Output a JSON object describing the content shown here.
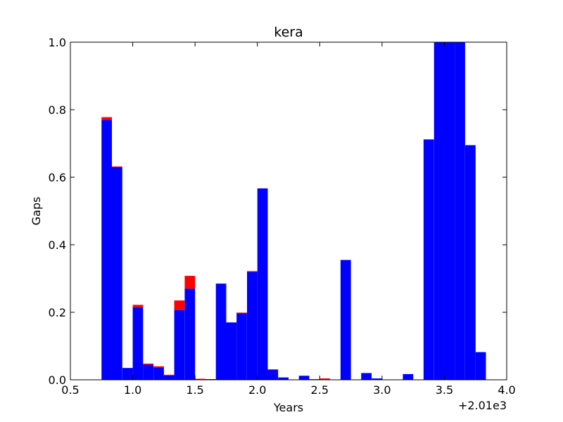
{
  "chart_data": {
    "type": "bar",
    "title": "kera",
    "xlabel": "Years",
    "ylabel": "Gaps",
    "offset_label": "+2.01e3",
    "xlim": [
      0.5,
      4.0
    ],
    "ylim": [
      0.0,
      1.0
    ],
    "xticks": [
      "0.5",
      "1.0",
      "1.5",
      "2.0",
      "2.5",
      "3.0",
      "3.5",
      "4.0"
    ],
    "yticks": [
      "0.0",
      "0.2",
      "0.4",
      "0.6",
      "0.8",
      "1.0"
    ],
    "bin_width": 0.0833,
    "grid": false,
    "colors": {
      "primary": "#0000ff",
      "secondary": "#ff0000"
    },
    "x": [
      0.75,
      0.833,
      0.917,
      1.0,
      1.083,
      1.167,
      1.25,
      1.333,
      1.417,
      1.5,
      1.583,
      1.667,
      1.75,
      1.833,
      1.917,
      2.0,
      2.083,
      2.167,
      2.25,
      2.333,
      2.417,
      2.5,
      2.583,
      2.667,
      2.75,
      2.833,
      2.917,
      3.0,
      3.083,
      3.167,
      3.25,
      3.333,
      3.417,
      3.5,
      3.583,
      3.667,
      3.75,
      3.833
    ],
    "series": [
      {
        "values": [
          0.77,
          0.63,
          0.035,
          0.215,
          0.045,
          0.037,
          0.013,
          0.207,
          0.27,
          0.0,
          0.002,
          0.285,
          0.17,
          0.197,
          0.32,
          0.567,
          0.03,
          0.007,
          0.0,
          0.012,
          0.0,
          0.001,
          0.0,
          0.355,
          0.0,
          0.02,
          0.004,
          0.0,
          0.0,
          0.017,
          0.0,
          0.712,
          1.0,
          1.0,
          1.0,
          0.695,
          0.082,
          0.0
        ]
      },
      {
        "values": [
          0.008,
          0.002,
          0.0,
          0.007,
          0.003,
          0.003,
          0.002,
          0.028,
          0.038,
          0.003,
          0.0,
          0.0,
          0.0,
          0.002,
          0.002,
          0.0,
          0.001,
          0.0,
          0.0,
          0.0,
          0.002,
          0.003,
          0.0,
          0.0,
          0.0,
          0.0,
          0.0,
          0.0,
          0.0,
          0.0,
          0.0,
          0.0,
          0.0,
          0.0,
          0.0,
          0.0,
          0.0,
          0.0
        ]
      }
    ]
  }
}
